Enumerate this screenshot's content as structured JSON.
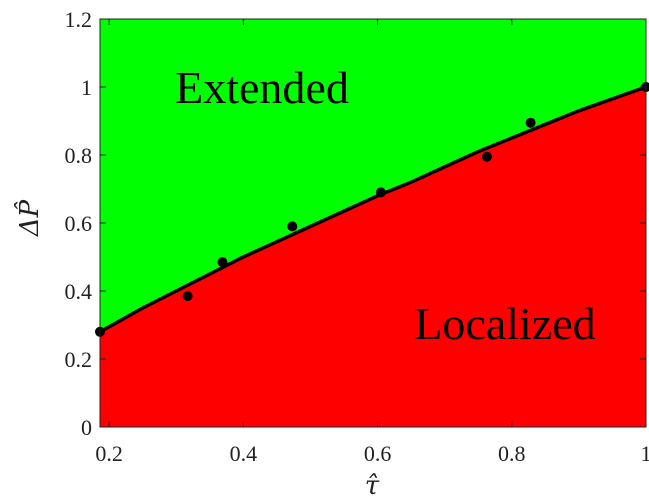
{
  "chart_data": {
    "type": "area",
    "xlabel": "τ̂",
    "ylabel": "ΔP̂",
    "xlim": [
      0.1864,
      1.0
    ],
    "ylim": [
      0,
      1.2
    ],
    "xticks": [
      "0.2",
      "0.4",
      "0.6",
      "0.8",
      "1"
    ],
    "yticks": [
      "0",
      "0.2",
      "0.4",
      "0.6",
      "0.8",
      "1",
      "1.2"
    ],
    "grid": false,
    "regions": [
      {
        "label": "Extended",
        "color": "#00ff00",
        "position": "above"
      },
      {
        "label": "Localized",
        "color": "#ff0000",
        "position": "below"
      }
    ],
    "boundary": {
      "x": [
        0.1864,
        0.25,
        0.3,
        0.35,
        0.4,
        0.45,
        0.5,
        0.55,
        0.6,
        0.65,
        0.7,
        0.75,
        0.8,
        0.85,
        0.9,
        0.95,
        1.0
      ],
      "y": [
        0.28,
        0.35,
        0.4,
        0.45,
        0.5,
        0.545,
        0.59,
        0.635,
        0.68,
        0.72,
        0.765,
        0.81,
        0.85,
        0.89,
        0.93,
        0.965,
        1.0
      ]
    },
    "points": {
      "x": [
        0.1864,
        0.317,
        0.369,
        0.473,
        0.605,
        0.763,
        0.828,
        1.0
      ],
      "y": [
        0.28,
        0.385,
        0.485,
        0.59,
        0.69,
        0.795,
        0.895,
        1.0
      ]
    }
  }
}
